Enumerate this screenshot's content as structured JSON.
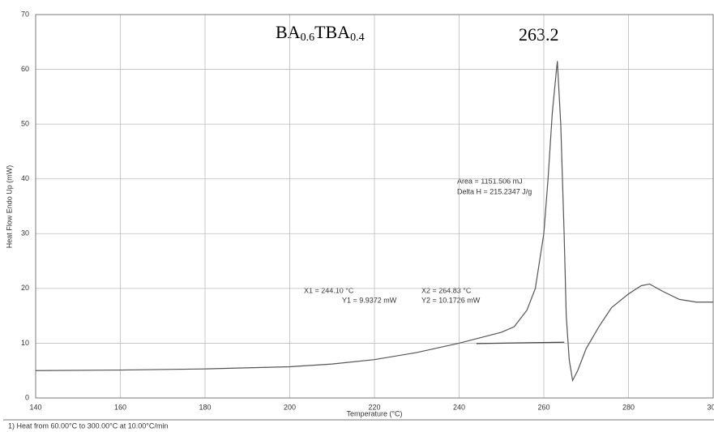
{
  "chart_data": {
    "type": "line",
    "title": [
      "BA",
      "0.6",
      "TBA",
      "0.4"
    ],
    "x_label": "Temperature (°C)",
    "y_label": "Heat Flow Endo Up (mW)",
    "annotations": [
      "263.2",
      "Area = 1151.506 mJ",
      "Delta H = 215.2347 J/g",
      "X1 = 244.10 °C",
      "Y1 = 9.9372 mW",
      "X2 = 264.83 °C",
      "Y2 = 10.1726 mW"
    ],
    "footer": "1)  Heat from 60.00°C to 300.00°C at 10.00°C/min",
    "xlim": [
      140,
      300
    ],
    "ylim": [
      0,
      70
    ],
    "xticks": [
      140,
      160,
      180,
      200,
      220,
      240,
      260,
      280,
      300
    ],
    "yticks": [
      0,
      10,
      20,
      30,
      40,
      50,
      60,
      70
    ],
    "grid": true,
    "series": [
      {
        "color": "#555555",
        "x": [
          140,
          160,
          180,
          200,
          210,
          220,
          230,
          240,
          245,
          250,
          253,
          256,
          258,
          260,
          261,
          262,
          263,
          263.2,
          264,
          264.8,
          265.3,
          266,
          266.8,
          268,
          270,
          273,
          276,
          280,
          283,
          285,
          288,
          292,
          296,
          300
        ],
        "values": [
          5,
          5.1,
          5.3,
          5.7,
          6.2,
          7,
          8.3,
          10,
          11,
          12,
          13,
          16,
          20,
          30,
          40,
          52,
          60,
          61.5,
          50,
          30,
          15,
          7,
          3.2,
          5,
          9,
          13,
          16.5,
          19,
          20.5,
          20.8,
          19.5,
          18,
          17.5,
          17.5
        ]
      },
      {
        "color": "#444444",
        "x": [
          244.1,
          264.83
        ],
        "values": [
          9.9372,
          10.1726
        ]
      }
    ]
  }
}
